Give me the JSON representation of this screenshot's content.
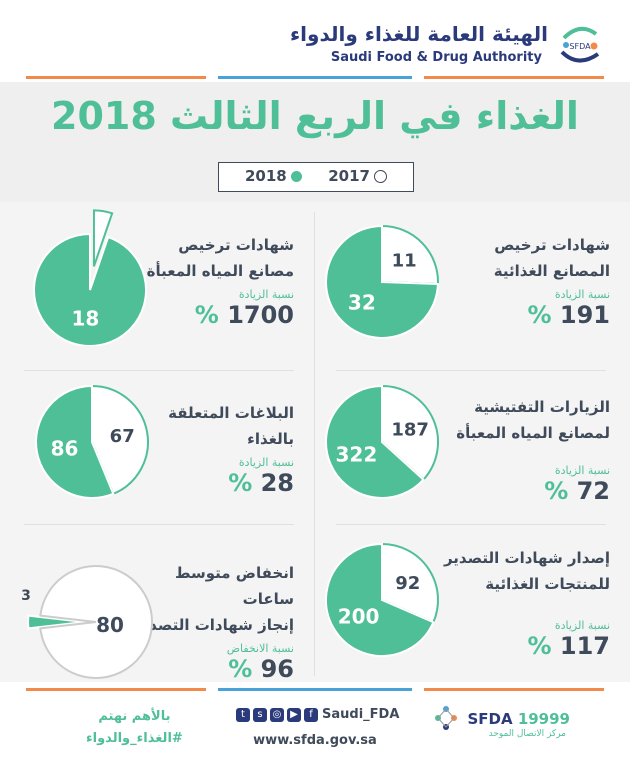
{
  "header": {
    "org_ar": "الهيئة العامة للغذاء والدواء",
    "org_en": "Saudi Food & Drug Authority",
    "logo_mark": "SFDA"
  },
  "title": "الغذاء في الربع الثالث 2018",
  "legend": {
    "y2018": "2018",
    "y2017": "2017"
  },
  "colors": {
    "accent": "#4fbf98",
    "dark": "#3f4a5a",
    "brand": "#2a3a7a",
    "orange": "#f28a4c",
    "blue": "#4aa3d8"
  },
  "panels": [
    {
      "title1": "شهادات ترخيص",
      "title2": "المصانع الغذائية",
      "label": "نسبة الزيادة",
      "value": "191",
      "symbol": "%",
      "v2018": "32",
      "v2017": "11",
      "n2018": 32,
      "n2017": 11
    },
    {
      "title1": "شهادات ترخيص",
      "title2": "مصانع المياه المعبأة",
      "label": "نسبة الزيادة",
      "value": "1700",
      "symbol": "%",
      "v2018": "18",
      "v2017": "1",
      "n2018": 18,
      "n2017": 1
    },
    {
      "title1": "الزيارات التفتيشية",
      "title2": "لمصانع المياه المعبأة",
      "label": "نسبة الزيادة",
      "value": "72",
      "symbol": "%",
      "v2018": "322",
      "v2017": "187",
      "n2018": 322,
      "n2017": 187
    },
    {
      "title1": "البلاغات المتعلقة",
      "title2": "بالغذاء",
      "label": "نسبة الزيادة",
      "value": "28",
      "symbol": "%",
      "v2018": "86",
      "v2017": "67",
      "n2018": 86,
      "n2017": 67
    },
    {
      "title1": "إصدار شهادات التصدير",
      "title2": "للمنتجات الغذائية",
      "label": "نسبة الزيادة",
      "value": "117",
      "symbol": "%",
      "v2018": "200",
      "v2017": "92",
      "n2018": 200,
      "n2017": 92
    },
    {
      "title1": "انخفاض متوسط ساعات",
      "title2": "إنجاز شهادات التصدير",
      "label": "نسبة الانخفاض",
      "value": "96",
      "symbol": "%",
      "v2018": "3",
      "v2017": "80",
      "n2018": 3,
      "n2017": 80
    }
  ],
  "footer": {
    "hashtag1": "بالأهم نهتم",
    "hashtag2": "#الغذاء_والدواء",
    "handle": "Saudi_FDA",
    "website": "www.sfda.gov.sa",
    "hotline_name": "SFDA",
    "hotline_number": "19999",
    "hotline_sub": "مركز الاتصال الموحد"
  }
}
